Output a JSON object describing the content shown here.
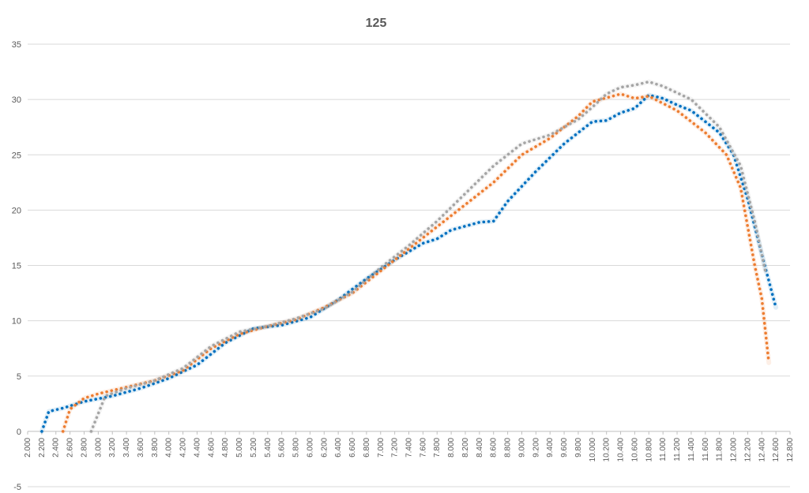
{
  "chart_data": {
    "type": "line",
    "title": "125",
    "xlabel": "",
    "ylabel": "",
    "xlim": [
      2000,
      12800
    ],
    "ylim": [
      -5,
      35
    ],
    "y_ticks": [
      "35",
      "30",
      "25",
      "20",
      "15",
      "10",
      "5",
      "0",
      "-5"
    ],
    "x_tick_labels": [
      "2.000",
      "2.200",
      "2.400",
      "2.600",
      "2.800",
      "3.000",
      "3.200",
      "3.400",
      "3.600",
      "3.800",
      "4.000",
      "4.200",
      "4.400",
      "4.600",
      "4.800",
      "5.000",
      "5.200",
      "5.400",
      "5.600",
      "5.800",
      "6.000",
      "6.200",
      "6.400",
      "6.600",
      "6.800",
      "7.000",
      "7.200",
      "7.400",
      "7.600",
      "7.800",
      "8.000",
      "8.200",
      "8.400",
      "8.600",
      "8.800",
      "9.000",
      "9.200",
      "9.400",
      "9.600",
      "9.800",
      "10.000",
      "10.200",
      "10.400",
      "10.600",
      "10.800",
      "11.000",
      "11.200",
      "11.400",
      "11.600",
      "11.800",
      "12.000",
      "12.200",
      "12.400",
      "12.600",
      "12.800"
    ],
    "grid": true,
    "legend": "none",
    "series": [
      {
        "color": "#0070c0",
        "points": [
          [
            2200,
            0
          ],
          [
            2300,
            1.8
          ],
          [
            2500,
            2.1
          ],
          [
            2800,
            2.7
          ],
          [
            3200,
            3.2
          ],
          [
            3600,
            3.9
          ],
          [
            4000,
            4.8
          ],
          [
            4400,
            6.0
          ],
          [
            4800,
            8.0
          ],
          [
            5200,
            9.3
          ],
          [
            5600,
            9.6
          ],
          [
            6000,
            10.3
          ],
          [
            6400,
            11.9
          ],
          [
            6800,
            13.8
          ],
          [
            7200,
            15.5
          ],
          [
            7600,
            17.0
          ],
          [
            7800,
            17.4
          ],
          [
            8000,
            18.2
          ],
          [
            8400,
            18.9
          ],
          [
            8600,
            19.0
          ],
          [
            8800,
            20.8
          ],
          [
            9200,
            23.5
          ],
          [
            9600,
            26.0
          ],
          [
            10000,
            28.0
          ],
          [
            10200,
            28.1
          ],
          [
            10400,
            28.8
          ],
          [
            10600,
            29.2
          ],
          [
            10800,
            30.4
          ],
          [
            11000,
            30.1
          ],
          [
            11200,
            29.5
          ],
          [
            11400,
            29.0
          ],
          [
            11600,
            28.0
          ],
          [
            11800,
            27.0
          ],
          [
            12000,
            25.0
          ],
          [
            12200,
            21.0
          ],
          [
            12400,
            16.0
          ],
          [
            12600,
            11.2
          ]
        ]
      },
      {
        "color": "#ed7d31",
        "points": [
          [
            2500,
            0
          ],
          [
            2600,
            2.0
          ],
          [
            2800,
            3.0
          ],
          [
            3000,
            3.4
          ],
          [
            3400,
            4.0
          ],
          [
            3800,
            4.6
          ],
          [
            4200,
            5.5
          ],
          [
            4600,
            7.5
          ],
          [
            5000,
            8.8
          ],
          [
            5400,
            9.5
          ],
          [
            5800,
            10.1
          ],
          [
            6200,
            11.2
          ],
          [
            6600,
            12.5
          ],
          [
            7000,
            14.5
          ],
          [
            7400,
            16.5
          ],
          [
            7800,
            18.5
          ],
          [
            8200,
            20.5
          ],
          [
            8600,
            22.5
          ],
          [
            9000,
            25.0
          ],
          [
            9400,
            26.5
          ],
          [
            9800,
            28.5
          ],
          [
            10000,
            29.8
          ],
          [
            10400,
            30.5
          ],
          [
            10600,
            30.1
          ],
          [
            10800,
            30.3
          ],
          [
            11200,
            29.0
          ],
          [
            11600,
            27.0
          ],
          [
            11900,
            25.0
          ],
          [
            12100,
            22.0
          ],
          [
            12300,
            15.0
          ],
          [
            12400,
            12.0
          ],
          [
            12500,
            6.2
          ]
        ]
      },
      {
        "color": "#a5a5a5",
        "points": [
          [
            2900,
            0
          ],
          [
            3100,
            3.2
          ],
          [
            3400,
            3.9
          ],
          [
            3800,
            4.6
          ],
          [
            4200,
            5.7
          ],
          [
            4600,
            7.7
          ],
          [
            5000,
            9.0
          ],
          [
            5400,
            9.5
          ],
          [
            5800,
            10.2
          ],
          [
            6200,
            11.1
          ],
          [
            6600,
            12.6
          ],
          [
            7000,
            14.8
          ],
          [
            7400,
            16.8
          ],
          [
            7800,
            19.0
          ],
          [
            8200,
            21.5
          ],
          [
            8600,
            24.0
          ],
          [
            9000,
            26.0
          ],
          [
            9400,
            26.8
          ],
          [
            9800,
            28.2
          ],
          [
            10000,
            29.3
          ],
          [
            10200,
            30.5
          ],
          [
            10400,
            31.1
          ],
          [
            10600,
            31.3
          ],
          [
            10800,
            31.6
          ],
          [
            11000,
            31.2
          ],
          [
            11400,
            30.0
          ],
          [
            11800,
            27.5
          ],
          [
            12100,
            24.0
          ],
          [
            12300,
            19.0
          ],
          [
            12450,
            14.5
          ]
        ]
      }
    ]
  }
}
